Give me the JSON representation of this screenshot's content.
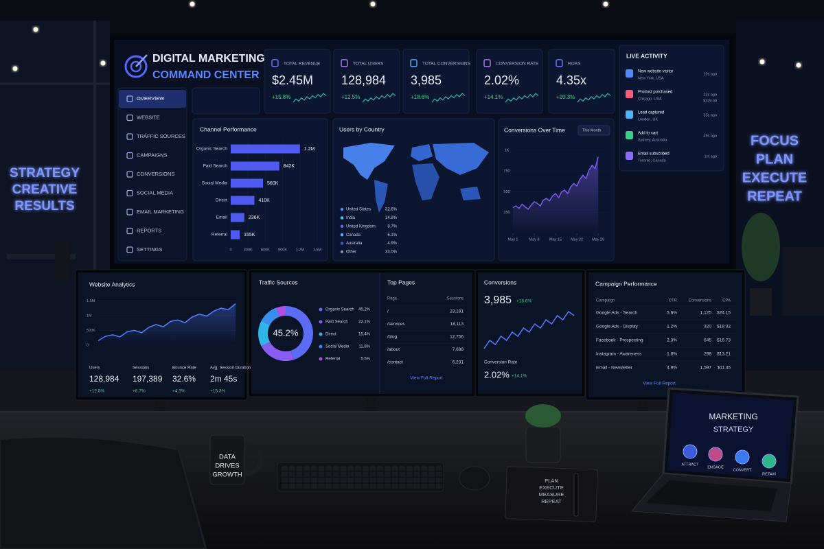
{
  "wall_left": [
    "STRATEGY",
    "CREATIVE",
    "RESULTS"
  ],
  "wall_right": [
    "FOCUS",
    "PLAN",
    "EXECUTE",
    "REPEAT"
  ],
  "header": {
    "title_1": "DIGITAL MARKETING",
    "title_2": "COMMAND CENTER"
  },
  "nav": [
    "OVERVIEW",
    "WEBSITE",
    "TRAFFIC SOURCES",
    "CAMPAIGNS",
    "CONVERSIONS",
    "SOCIAL MEDIA",
    "EMAIL MARKETING",
    "REPORTS",
    "SETTINGS"
  ],
  "kpis": [
    {
      "label": "TOTAL REVENUE",
      "value": "$2.45M",
      "change": "+15.8%"
    },
    {
      "label": "TOTAL USERS",
      "value": "128,984",
      "change": "+12.5%"
    },
    {
      "label": "TOTAL CONVERSIONS",
      "value": "3,985",
      "change": "+18.6%"
    },
    {
      "label": "CONVERSION RATE",
      "value": "2.02%",
      "change": "+14.1%"
    },
    {
      "label": "ROAS",
      "value": "4.35x",
      "change": "+20.3%"
    }
  ],
  "live_activity": {
    "title": "LIVE ACTIVITY",
    "items": [
      {
        "event": "New website visitor",
        "location": "New York, USA",
        "time": "10s ago"
      },
      {
        "event": "Product purchased",
        "location": "Chicago, USA",
        "time": "22s ago",
        "amount": "$129.00"
      },
      {
        "event": "Lead captured",
        "location": "London, UK",
        "time": "35s ago"
      },
      {
        "event": "Add to cart",
        "location": "Sydney, Australia",
        "time": "45s ago"
      },
      {
        "event": "Email subscribed",
        "location": "Toronto, Canada",
        "time": "1m ago"
      }
    ]
  },
  "channel_performance": {
    "type": "bar",
    "title": "Channel Performance",
    "categories": [
      "Organic Search",
      "Paid Search",
      "Social Media",
      "Direct",
      "Email",
      "Referral"
    ],
    "values": [
      1200000,
      842000,
      560000,
      410000,
      236000,
      155000
    ],
    "value_labels": [
      "1.2M",
      "842K",
      "560K",
      "410K",
      "236K",
      "155K"
    ],
    "xlim": [
      0,
      1500000
    ],
    "xticks": [
      0,
      {
        "value": 300000,
        "label": "300K"
      },
      {
        "value": 600000,
        "label": "600K"
      },
      {
        "value": 900000,
        "label": "900K"
      },
      {
        "value": 1200000,
        "label": "1.2M"
      },
      {
        "value": 1500000,
        "label": "1.5M"
      }
    ],
    "color": "#4f5bf0"
  },
  "users_by_country": {
    "title": "Users by Country",
    "items": [
      {
        "country": "United States",
        "share": "32.6%"
      },
      {
        "country": "India",
        "share": "14.8%"
      },
      {
        "country": "United Kingdom",
        "share": "8.7%"
      },
      {
        "country": "Canada",
        "share": "6.1%"
      },
      {
        "country": "Australia",
        "share": "4.9%"
      },
      {
        "country": "Other",
        "share": "33.0%"
      }
    ]
  },
  "conversions_over_time": {
    "type": "line",
    "title": "Conversions Over Time",
    "period": "This Month",
    "x": [
      1,
      2,
      3,
      4,
      5,
      6,
      7,
      8,
      9,
      10,
      11,
      12,
      13,
      14,
      15,
      16,
      17,
      18,
      19,
      20,
      21,
      22,
      23,
      24,
      25,
      26,
      27,
      28,
      29
    ],
    "values": [
      310,
      330,
      300,
      350,
      320,
      290,
      340,
      380,
      360,
      330,
      400,
      420,
      390,
      450,
      480,
      430,
      500,
      520,
      480,
      560,
      600,
      570,
      650,
      700,
      660,
      760,
      820,
      780,
      920
    ],
    "xlim": [
      1,
      31
    ],
    "xticks": [
      {
        "value": 1,
        "label": "May 1"
      },
      {
        "value": 8,
        "label": "May 8"
      },
      {
        "value": 15,
        "label": "May 15"
      },
      {
        "value": 22,
        "label": "May 22"
      },
      {
        "value": 29,
        "label": "May 29"
      }
    ],
    "ylim": [
      0,
      1000
    ],
    "yticks": [
      250,
      500,
      750,
      {
        "value": 1000,
        "label": "1K"
      }
    ],
    "color": "#7b5cf0"
  },
  "website_analytics": {
    "type": "line",
    "title": "Website Analytics",
    "values": [
      150000,
      300000,
      350000,
      280000,
      450000,
      500000,
      420000,
      600000,
      700000,
      620000,
      800000,
      850000,
      760000,
      950000,
      1050000,
      980000,
      1150000,
      1250000,
      1200000,
      1400000
    ],
    "ylim": [
      0,
      1600000
    ],
    "yticks": [
      0,
      {
        "value": 500000,
        "label": "500K"
      },
      {
        "value": 1000000,
        "label": "1M"
      },
      {
        "value": 1500000,
        "label": "1.5M"
      }
    ],
    "color": "#4f7bff",
    "stats": [
      {
        "label": "Users",
        "value": "128,984",
        "change": "+12.5%"
      },
      {
        "label": "Sessions",
        "value": "197,389",
        "change": "+8.7%"
      },
      {
        "label": "Bounce Rate",
        "value": "32.6%",
        "change": "+4.3%"
      },
      {
        "label": "Avg. Session Duration",
        "value": "2m 45s",
        "change": "+15.3%"
      }
    ]
  },
  "traffic_sources": {
    "type": "pie",
    "title": "Traffic Sources",
    "categories": [
      "Organic Search",
      "Paid Search",
      "Direct",
      "Social Media",
      "Referral"
    ],
    "values": [
      45.2,
      22.1,
      15.4,
      11.8,
      5.5
    ],
    "value_labels": [
      "45.2%",
      "22.1%",
      "15.4%",
      "11.8%",
      "5.5%"
    ],
    "colors": [
      "#5b6cf5",
      "#8a5cf0",
      "#2fb5e8",
      "#3a8ef0",
      "#b04fe0"
    ]
  },
  "top_pages": {
    "title": "Top Pages",
    "columns": [
      "Page",
      "Sessions"
    ],
    "rows": [
      [
        "/",
        "23,191"
      ],
      [
        "/services",
        "18,113"
      ],
      [
        "/blog",
        "12,756"
      ],
      [
        "/about",
        "7,688"
      ],
      [
        "/contact",
        "6,231"
      ]
    ],
    "link": "View Full Report"
  },
  "conversions": {
    "title": "Conversions",
    "value": "3,985",
    "change": "+18.6%",
    "rate_label": "Conversion Rate",
    "rate": "2.02%",
    "rate_change": "+14.1%"
  },
  "campaign_performance": {
    "title": "Campaign Performance",
    "columns": [
      "Campaign",
      "CTR",
      "Conversions",
      "CPA"
    ],
    "rows": [
      [
        "Google Ads - Search",
        "5.6%",
        "1,125",
        "$24.15"
      ],
      [
        "Google Ads - Display",
        "1.2%",
        "320",
        "$18.32"
      ],
      [
        "Facebook - Prospecting",
        "2.3%",
        "645",
        "$16.73"
      ],
      [
        "Instagram - Awareness",
        "1.8%",
        "298",
        "$13.21"
      ],
      [
        "Email - Newsletter",
        "4.9%",
        "1,597",
        "$11.45"
      ]
    ],
    "link": "View Full Report"
  },
  "mug": [
    "DATA",
    "DRIVES",
    "GROWTH"
  ],
  "notebook": [
    "PLAN",
    "EXECUTE",
    "MEASURE",
    "REPEAT"
  ],
  "laptop": {
    "title_1": "MARKETING",
    "title_2": "STRATEGY",
    "steps": [
      "ATTRACT",
      "ENGAGE",
      "CONVERT",
      "RETAIN"
    ]
  }
}
